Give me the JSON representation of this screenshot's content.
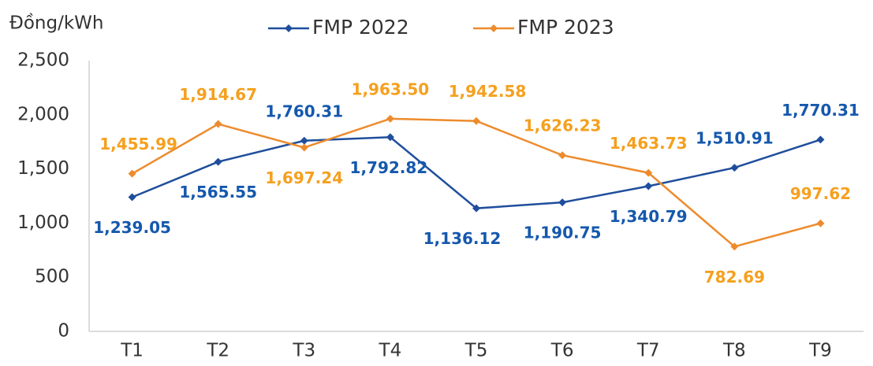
{
  "chart_data": {
    "type": "line",
    "y_axis_label": "Đồng/kWh",
    "categories": [
      "T1",
      "T2",
      "T3",
      "T4",
      "T5",
      "T6",
      "T7",
      "T8",
      "T9"
    ],
    "series": [
      {
        "name": "FMP 2022",
        "color": "#1f4e9c",
        "label_color": "#1558ad",
        "values": [
          1239.05,
          1565.55,
          1760.31,
          1792.82,
          1136.12,
          1190.75,
          1340.79,
          1510.91,
          1770.31
        ],
        "value_labels": [
          "1,239.05",
          "1,565.55",
          "1,760.31",
          "1,792.82",
          "1,136.12",
          "1,190.75",
          "1,340.79",
          "1,510.91",
          "1,770.31"
        ]
      },
      {
        "name": "FMP 2023",
        "color": "#ed8b2c",
        "label_color": "#f5a01e",
        "values": [
          1455.99,
          1914.67,
          1697.24,
          1963.5,
          1942.58,
          1626.23,
          1463.73,
          782.69,
          997.62
        ],
        "value_labels": [
          "1,455.99",
          "1,914.67",
          "1,697.24",
          "1,963.50",
          "1,942.58",
          "1,626.23",
          "1,463.73",
          "782.69",
          "997.62"
        ]
      }
    ],
    "ylim": [
      0,
      2500
    ],
    "yticks": [
      0,
      500,
      {
        "value": 1000,
        "label": "1,000"
      },
      {
        "value": 1500,
        "label": "1,500"
      },
      {
        "value": 2000,
        "label": "2,000"
      },
      {
        "value": 2500,
        "label": "2,500"
      }
    ],
    "grid": false
  }
}
